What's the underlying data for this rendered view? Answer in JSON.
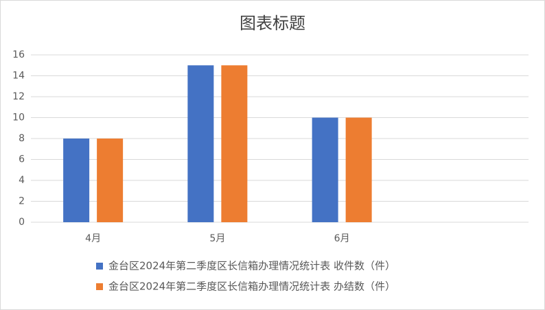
{
  "chart_data": {
    "type": "bar",
    "title": "图表标题",
    "categories": [
      "4月",
      "5月",
      "6月",
      null
    ],
    "series": [
      {
        "name": "金台区2024年第二季度区长信箱办理情况统计表 收件数（件）",
        "color": "#4472c4",
        "values": [
          8,
          15,
          10,
          null
        ]
      },
      {
        "name": "金台区2024年第二季度区长信箱办理情况统计表 办结数（件）",
        "color": "#ed7d31",
        "values": [
          8,
          15,
          10,
          null
        ]
      }
    ],
    "ylim": [
      0,
      16
    ],
    "yticks": [
      0,
      2,
      4,
      6,
      8,
      10,
      12,
      14,
      16
    ],
    "grid": true,
    "legend": "bottom"
  }
}
